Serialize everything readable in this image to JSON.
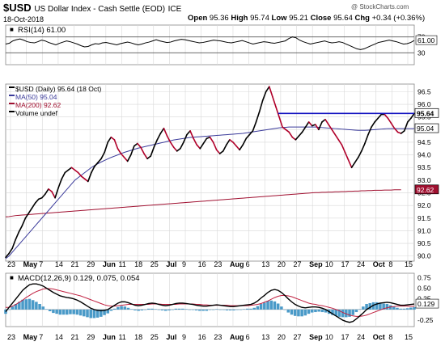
{
  "header": {
    "symbol": "$USD",
    "description": "US Dollar Index - Cash Settle (EOD)",
    "exchange": "ICE",
    "date": "18-Oct-2018",
    "watermark": "@ StockCharts.com",
    "quote": {
      "open_label": "Open",
      "open": "95.36",
      "high_label": "High",
      "high": "95.74",
      "low_label": "Low",
      "low": "95.21",
      "close_label": "Close",
      "close": "95.64",
      "chg_label": "Chg",
      "chg": "+0.34 (+0.36%)"
    }
  },
  "colors": {
    "price_up": "#000000",
    "price_down": "#b0002a",
    "ma50": "#3a3a9a",
    "ma200": "#a01030",
    "trendline": "#1010c0",
    "macd_line": "#000000",
    "signal_line": "#c02040",
    "histogram": "#4a9ac8",
    "grid": "#d8d8d8"
  },
  "chart_data": [
    {
      "type": "line",
      "panel": "rsi",
      "title": "RSI(14) 61.00",
      "y_ticks": [
        "70",
        "61.00",
        "30"
      ],
      "ylim": [
        0,
        100
      ],
      "reference_lines": [
        70,
        30
      ],
      "series": [
        {
          "name": "RSI(14)",
          "values": [
            52,
            54,
            60,
            63,
            65,
            62,
            58,
            56,
            55,
            58,
            62,
            60,
            56,
            53,
            50,
            54,
            57,
            60,
            58,
            55,
            52,
            48,
            45,
            46,
            50,
            53,
            52,
            55,
            56,
            54,
            52,
            50,
            53,
            55,
            57,
            55,
            52,
            50,
            52,
            55,
            57,
            60,
            63,
            60,
            58,
            56,
            57,
            60,
            62,
            64,
            63,
            61,
            59,
            57,
            55,
            56,
            58,
            60,
            62,
            61,
            60,
            58,
            56,
            55,
            57,
            59,
            61,
            58,
            55,
            52,
            54,
            56,
            58,
            57,
            55,
            54,
            56,
            58,
            60,
            66,
            70,
            68,
            62,
            58,
            55,
            52,
            54,
            56,
            58,
            60,
            57,
            55,
            56,
            58,
            56,
            52,
            48,
            44,
            40,
            38,
            40,
            44,
            48,
            52,
            56,
            58,
            60,
            62,
            60,
            58,
            55,
            52,
            53,
            56,
            61
          ]
        }
      ]
    },
    {
      "type": "line",
      "panel": "price",
      "legend": [
        {
          "label": "$USD (Daily) 95.64 (18 Oct)",
          "color_key": "price_up"
        },
        {
          "label": "MA(50) 95.04",
          "color_key": "ma50"
        },
        {
          "label": "MA(200) 92.62",
          "color_key": "ma200"
        },
        {
          "label": "Volume undef",
          "color_key": "price_up"
        }
      ],
      "y_ticks": [
        "96.5",
        "96.0",
        "95.5",
        "95.0",
        "94.5",
        "94.0",
        "93.5",
        "93.0",
        "92.5",
        "92.0",
        "91.5",
        "91.0",
        "90.5",
        "90.0"
      ],
      "ylim": [
        89.8,
        96.8
      ],
      "value_tags": [
        {
          "label": "95.64",
          "value": 95.64,
          "style": "boxed"
        },
        {
          "label": "95.04",
          "value": 95.04,
          "style": "boxed"
        },
        {
          "label": "92.62",
          "value": 92.62,
          "style": "filled"
        }
      ],
      "x_tick_labels": [
        "23",
        "May",
        "7",
        "14",
        "21",
        "29",
        "Jun",
        "11",
        "18",
        "25",
        "Jul",
        "9",
        "16",
        "23",
        "Aug",
        "6",
        "13",
        "20",
        "27",
        "Sep",
        "10",
        "17",
        "24",
        "Oct",
        "8",
        "15"
      ],
      "series": [
        {
          "name": "$USD",
          "values": [
            89.95,
            90.1,
            90.3,
            90.65,
            90.95,
            91.2,
            91.5,
            91.7,
            91.9,
            92.1,
            92.25,
            92.3,
            92.45,
            92.65,
            92.55,
            92.3,
            92.7,
            93.05,
            93.3,
            93.4,
            93.5,
            93.4,
            93.3,
            93.15,
            93.05,
            92.95,
            93.3,
            93.55,
            93.7,
            93.85,
            94.1,
            94.5,
            94.7,
            94.6,
            94.25,
            94.05,
            93.9,
            93.75,
            94.0,
            94.35,
            94.45,
            94.3,
            94.05,
            93.85,
            93.95,
            94.3,
            94.6,
            94.85,
            95.05,
            94.75,
            94.5,
            94.3,
            94.15,
            94.25,
            94.5,
            94.8,
            94.95,
            94.65,
            94.4,
            94.25,
            94.45,
            94.65,
            94.7,
            94.5,
            94.2,
            94.05,
            94.15,
            94.4,
            94.6,
            94.5,
            94.35,
            94.2,
            94.4,
            94.65,
            94.8,
            94.95,
            95.3,
            95.7,
            96.15,
            96.5,
            96.7,
            96.3,
            95.9,
            95.5,
            95.1,
            95.0,
            94.9,
            94.7,
            94.6,
            94.75,
            94.9,
            95.1,
            95.3,
            95.15,
            95.2,
            95.0,
            95.3,
            95.4,
            95.2,
            95.0,
            94.8,
            94.6,
            94.4,
            94.1,
            93.8,
            93.5,
            93.7,
            93.9,
            94.15,
            94.45,
            94.8,
            95.1,
            95.3,
            95.45,
            95.6,
            95.6,
            95.45,
            95.25,
            95.05,
            94.9,
            94.85,
            94.95,
            95.3,
            95.45,
            95.64
          ]
        },
        {
          "name": "MA(50)",
          "values": [
            89.9,
            90.0,
            90.15,
            90.3,
            90.45,
            90.6,
            90.75,
            90.9,
            91.05,
            91.2,
            91.35,
            91.5,
            91.65,
            91.8,
            91.95,
            92.1,
            92.25,
            92.4,
            92.55,
            92.7,
            92.85,
            93.0,
            93.1,
            93.2,
            93.3,
            93.4,
            93.5,
            93.58,
            93.65,
            93.72,
            93.78,
            93.84,
            93.9,
            93.95,
            94.0,
            94.05,
            94.1,
            94.14,
            94.18,
            94.22,
            94.26,
            94.29,
            94.32,
            94.35,
            94.38,
            94.41,
            94.44,
            94.47,
            94.5,
            94.53,
            94.56,
            94.59,
            94.61,
            94.63,
            94.65,
            94.67,
            94.69,
            94.7,
            94.71,
            94.72,
            94.73,
            94.74,
            94.75,
            94.76,
            94.77,
            94.78,
            94.79,
            94.8,
            94.81,
            94.82,
            94.83,
            94.84,
            94.85,
            94.87,
            94.89,
            94.91,
            94.93,
            94.95,
            94.97,
            94.99,
            95.01,
            95.03,
            95.05,
            95.07,
            95.08,
            95.09,
            95.1,
            95.1,
            95.1,
            95.1,
            95.1,
            95.1,
            95.1,
            95.1,
            95.1,
            95.09,
            95.08,
            95.07,
            95.06,
            95.05,
            95.04,
            95.03,
            95.02,
            95.01,
            95.0,
            94.99,
            94.98,
            94.97,
            94.97,
            94.97,
            94.98,
            94.99,
            95.0,
            95.01,
            95.02,
            95.03,
            95.04,
            95.04,
            95.04,
            95.04,
            95.04,
            95.04,
            95.04,
            95.04,
            95.04
          ]
        },
        {
          "name": "MA(200)",
          "values": [
            91.55,
            91.56,
            91.58,
            91.6,
            91.61,
            91.62,
            91.63,
            91.64,
            91.65,
            91.66,
            91.67,
            91.68,
            91.69,
            91.7,
            91.71,
            91.72,
            91.73,
            91.74,
            91.75,
            91.76,
            91.77,
            91.78,
            91.79,
            91.8,
            91.81,
            91.82,
            91.83,
            91.84,
            91.85,
            91.86,
            91.87,
            91.88,
            91.89,
            91.9,
            91.91,
            91.92,
            91.93,
            91.94,
            91.95,
            91.96,
            91.97,
            91.98,
            91.99,
            92.0,
            92.01,
            92.02,
            92.03,
            92.04,
            92.05,
            92.06,
            92.07,
            92.08,
            92.09,
            92.1,
            92.11,
            92.12,
            92.13,
            92.14,
            92.15,
            92.16,
            92.17,
            92.18,
            92.19,
            92.2,
            92.21,
            92.22,
            92.23,
            92.24,
            92.25,
            92.26,
            92.27,
            92.28,
            92.29,
            92.3,
            92.31,
            92.32,
            92.33,
            92.34,
            92.35,
            92.36,
            92.37,
            92.38,
            92.39,
            92.4,
            92.41,
            92.42,
            92.43,
            92.44,
            92.45,
            92.46,
            92.47,
            92.48,
            92.49,
            92.5,
            92.51,
            92.51,
            92.52,
            92.52,
            92.53,
            92.53,
            92.54,
            92.54,
            92.55,
            92.55,
            92.56,
            92.56,
            92.57,
            92.57,
            92.58,
            92.58,
            92.59,
            92.59,
            92.6,
            92.6,
            92.6,
            92.61,
            92.61,
            92.61,
            92.62,
            92.62,
            92.62
          ]
        }
      ],
      "trendline": {
        "value": 95.64,
        "from_fraction": 0.667
      }
    },
    {
      "type": "line",
      "panel": "macd",
      "title": "MACD(12,26,9) 0.129, 0.075, 0.054",
      "y_ticks": [
        "0.75",
        "0.50",
        "0.25",
        "0.129",
        "-0.25"
      ],
      "ylim": [
        -0.4,
        0.85
      ],
      "series": [
        {
          "name": "MACD",
          "values": [
            -0.05,
            0.05,
            0.15,
            0.25,
            0.35,
            0.45,
            0.52,
            0.58,
            0.6,
            0.6,
            0.58,
            0.55,
            0.5,
            0.45,
            0.4,
            0.36,
            0.32,
            0.3,
            0.28,
            0.27,
            0.25,
            0.22,
            0.18,
            0.13,
            0.08,
            0.03,
            0.0,
            -0.02,
            -0.03,
            -0.02,
            0.0,
            0.05,
            0.1,
            0.15,
            0.18,
            0.18,
            0.16,
            0.13,
            0.1,
            0.09,
            0.1,
            0.12,
            0.14,
            0.15,
            0.14,
            0.12,
            0.1,
            0.09,
            0.1,
            0.12,
            0.14,
            0.15,
            0.15,
            0.14,
            0.13,
            0.12,
            0.1,
            0.09,
            0.08,
            0.08,
            0.09,
            0.1,
            0.11,
            0.1,
            0.09,
            0.08,
            0.07,
            0.07,
            0.08,
            0.09,
            0.1,
            0.11,
            0.12,
            0.15,
            0.2,
            0.27,
            0.33,
            0.4,
            0.45,
            0.47,
            0.45,
            0.4,
            0.33,
            0.25,
            0.18,
            0.12,
            0.08,
            0.05,
            0.04,
            0.05,
            0.06,
            0.06,
            0.05,
            0.03,
            0.0,
            -0.05,
            -0.1,
            -0.15,
            -0.2,
            -0.25,
            -0.28,
            -0.3,
            -0.28,
            -0.22,
            -0.15,
            -0.08,
            0.0,
            0.05,
            0.1,
            0.13,
            0.15,
            0.16,
            0.17,
            0.16,
            0.14,
            0.12,
            0.1,
            0.1,
            0.11,
            0.12,
            0.129
          ]
        },
        {
          "name": "Signal",
          "values": [
            0.05,
            0.05,
            0.08,
            0.12,
            0.17,
            0.22,
            0.28,
            0.33,
            0.38,
            0.42,
            0.45,
            0.48,
            0.49,
            0.49,
            0.48,
            0.46,
            0.44,
            0.42,
            0.4,
            0.38,
            0.36,
            0.34,
            0.32,
            0.29,
            0.26,
            0.23,
            0.2,
            0.17,
            0.14,
            0.11,
            0.09,
            0.08,
            0.08,
            0.09,
            0.1,
            0.11,
            0.12,
            0.12,
            0.12,
            0.12,
            0.12,
            0.12,
            0.12,
            0.13,
            0.13,
            0.13,
            0.12,
            0.12,
            0.12,
            0.12,
            0.12,
            0.13,
            0.13,
            0.13,
            0.13,
            0.13,
            0.12,
            0.12,
            0.11,
            0.11,
            0.1,
            0.1,
            0.1,
            0.1,
            0.1,
            0.1,
            0.09,
            0.09,
            0.09,
            0.09,
            0.09,
            0.09,
            0.1,
            0.11,
            0.12,
            0.14,
            0.17,
            0.2,
            0.24,
            0.28,
            0.31,
            0.33,
            0.33,
            0.32,
            0.3,
            0.27,
            0.24,
            0.21,
            0.18,
            0.15,
            0.13,
            0.12,
            0.1,
            0.09,
            0.07,
            0.05,
            0.03,
            0.0,
            -0.03,
            -0.07,
            -0.1,
            -0.13,
            -0.15,
            -0.16,
            -0.16,
            -0.15,
            -0.13,
            -0.1,
            -0.07,
            -0.04,
            -0.01,
            0.02,
            0.04,
            0.06,
            0.07,
            0.08,
            0.08,
            0.08,
            0.08,
            0.075,
            0.075
          ]
        }
      ],
      "histogram_rule": "MACD minus Signal, scaled ×1.0"
    }
  ]
}
